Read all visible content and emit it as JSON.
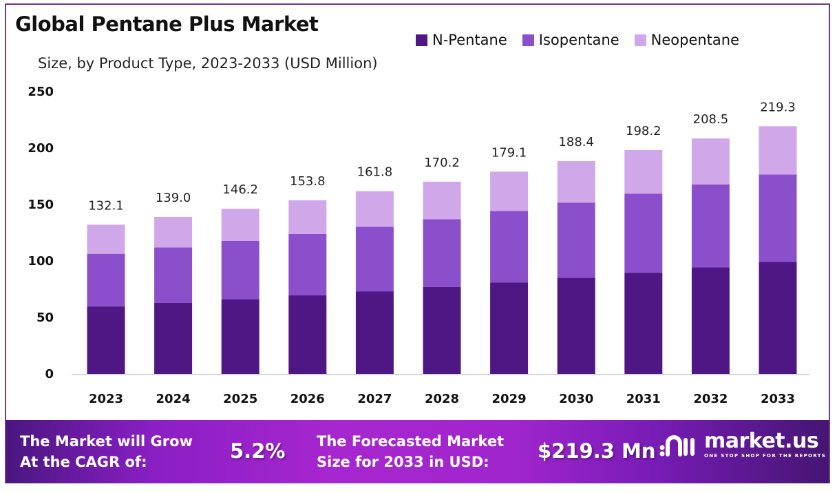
{
  "header": {
    "title": "Global Pentane Plus Market",
    "subtitle": "Size, by Product Type, 2023-2033 (USD Million)"
  },
  "legend": [
    {
      "label": "N-Pentane",
      "color": "#4f1784"
    },
    {
      "label": "Isopentane",
      "color": "#8b4fcc"
    },
    {
      "label": "Neopentane",
      "color": "#d0a8ea"
    }
  ],
  "chart_data": {
    "type": "bar",
    "stacked": true,
    "title": "Global Pentane Plus Market",
    "subtitle": "Size, by Product Type, 2023-2033 (USD Million)",
    "xlabel": "",
    "ylabel": "",
    "ylim": [
      0,
      250
    ],
    "yticks": [
      0,
      50,
      100,
      150,
      200,
      250
    ],
    "grid": false,
    "legend_position": "top-right",
    "categories": [
      "2023",
      "2024",
      "2025",
      "2026",
      "2027",
      "2028",
      "2029",
      "2030",
      "2031",
      "2032",
      "2033"
    ],
    "series": [
      {
        "name": "N-Pentane",
        "color": "#4f1784",
        "values": [
          59.7,
          62.8,
          66.1,
          69.5,
          73.1,
          76.9,
          81.0,
          85.2,
          89.6,
          94.2,
          99.1
        ]
      },
      {
        "name": "Isopentane",
        "color": "#8b4fcc",
        "values": [
          46.6,
          49.1,
          51.6,
          54.3,
          57.1,
          60.1,
          63.2,
          66.5,
          70.0,
          73.6,
          77.4
        ]
      },
      {
        "name": "Neopentane",
        "color": "#d0a8ea",
        "values": [
          25.8,
          27.1,
          28.5,
          30.0,
          31.6,
          33.2,
          34.9,
          36.7,
          38.6,
          40.7,
          42.8
        ]
      }
    ],
    "totals": [
      132.1,
      139.0,
      146.2,
      153.8,
      161.8,
      170.2,
      179.1,
      188.4,
      198.2,
      208.5,
      219.3
    ],
    "total_labels": [
      "132.1",
      "139.0",
      "146.2",
      "153.8",
      "161.8",
      "170.2",
      "179.1",
      "188.4",
      "198.2",
      "208.5",
      "219.3"
    ]
  },
  "footer": {
    "cagr_label_line1": "The Market will Grow",
    "cagr_label_line2": "At the CAGR of:",
    "cagr_value": "5.2%",
    "forecast_label_line1": "The Forecasted Market",
    "forecast_label_line2": "Size for 2033 in USD:",
    "forecast_value": "$219.3 Mn",
    "brand_name": "market.us",
    "brand_tagline": "ONE STOP SHOP FOR THE REPORTS"
  }
}
